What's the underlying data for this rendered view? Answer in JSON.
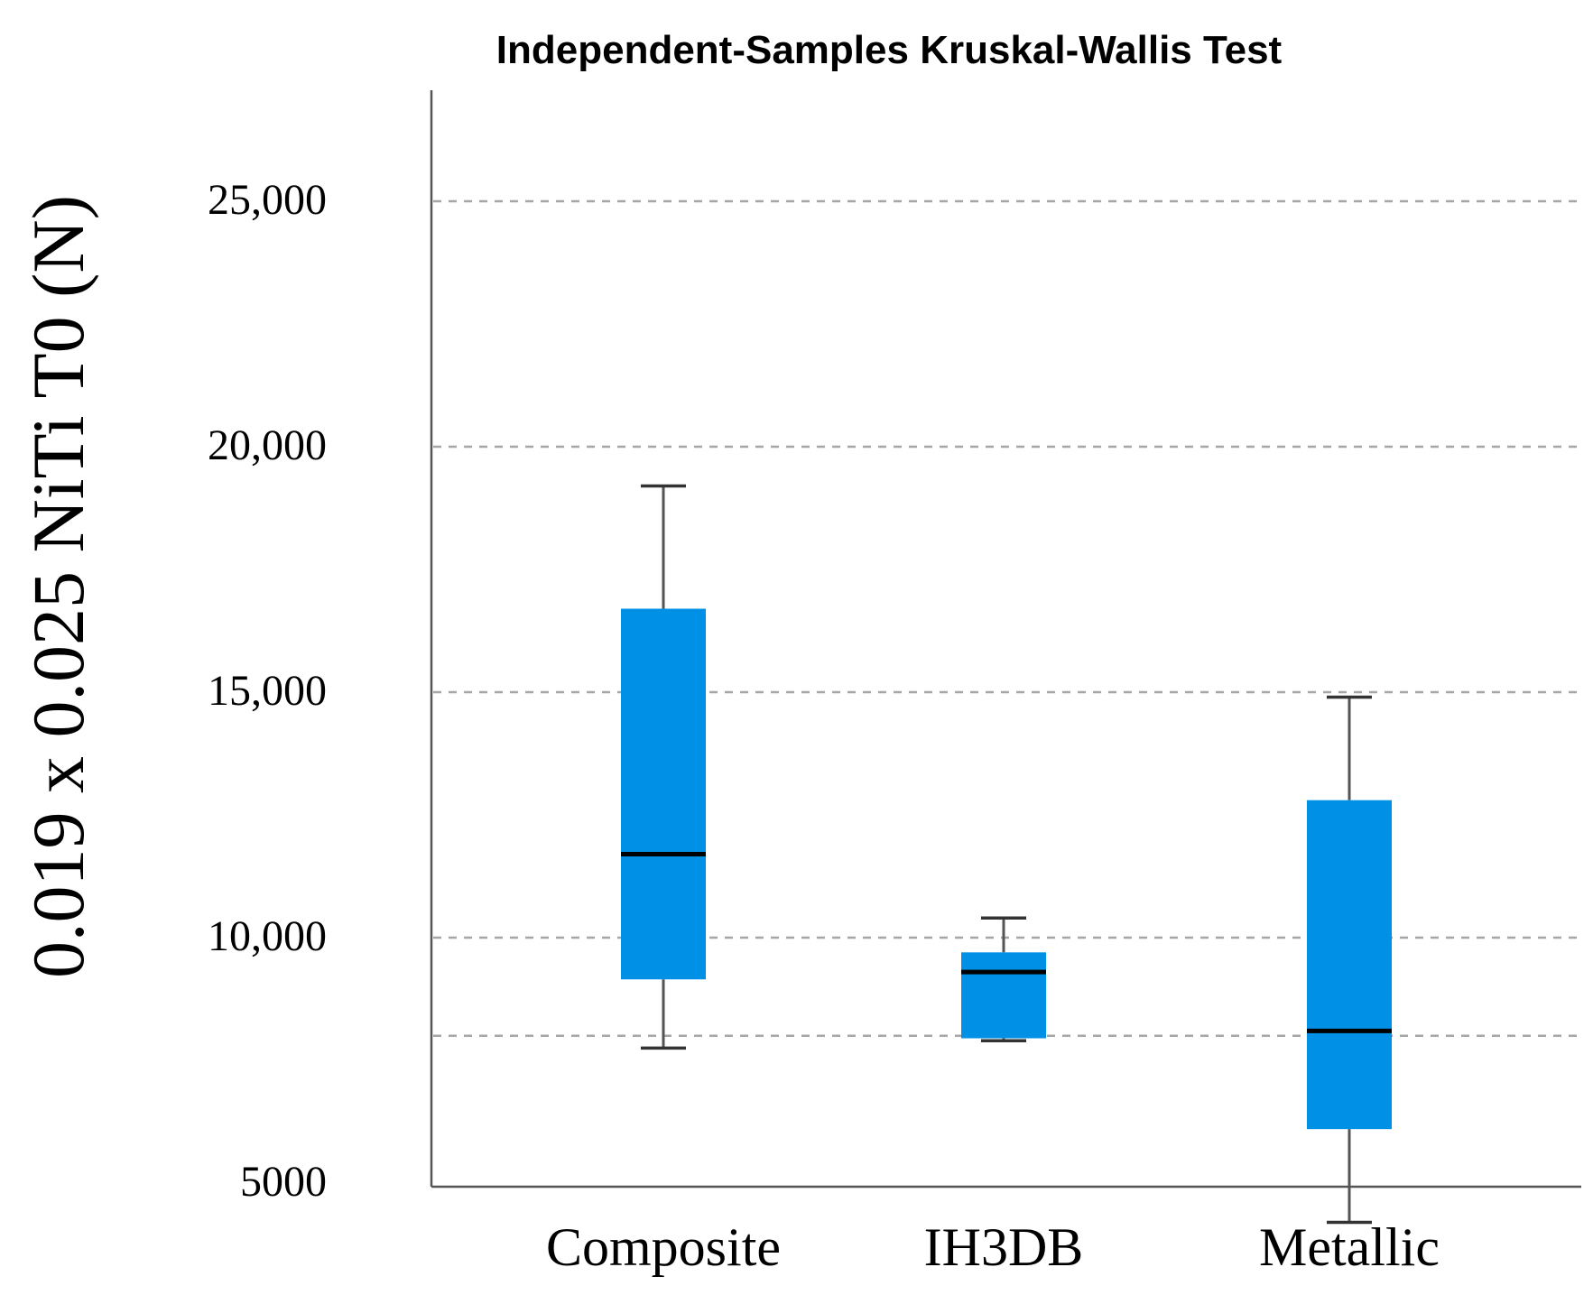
{
  "chart_data": {
    "type": "boxplot",
    "title": "Independent-Samples Kruskal-Wallis Test",
    "xlabel": "",
    "ylabel": "0.019 x 0.025 NiTi T0 (N)",
    "y_ticks": [
      {
        "value": 25000,
        "label": "25,000"
      },
      {
        "value": 20000,
        "label": "20,000"
      },
      {
        "value": 15000,
        "label": "15,000"
      },
      {
        "value": 10000,
        "label": "10,000"
      },
      {
        "value": 5000,
        "label": "5000"
      }
    ],
    "ylim": [
      3000,
      25300
    ],
    "grid": "dashed horizontal gridlines",
    "box_color": "#0091e6",
    "categories": [
      "Composite",
      "IH3DB",
      "Metallic"
    ],
    "boxes": [
      {
        "name": "Composite",
        "whisker_low": 7750,
        "q1": 9150,
        "median": 11700,
        "q3": 16700,
        "whisker_high": 19200
      },
      {
        "name": "IH3DB",
        "whisker_low": 7900,
        "q1": 7950,
        "median": 9300,
        "q3": 9700,
        "whisker_high": 10400
      },
      {
        "name": "Metallic",
        "whisker_low": 4200,
        "q1": 6100,
        "median": 8100,
        "q3": 12800,
        "whisker_high": 14900
      }
    ]
  }
}
